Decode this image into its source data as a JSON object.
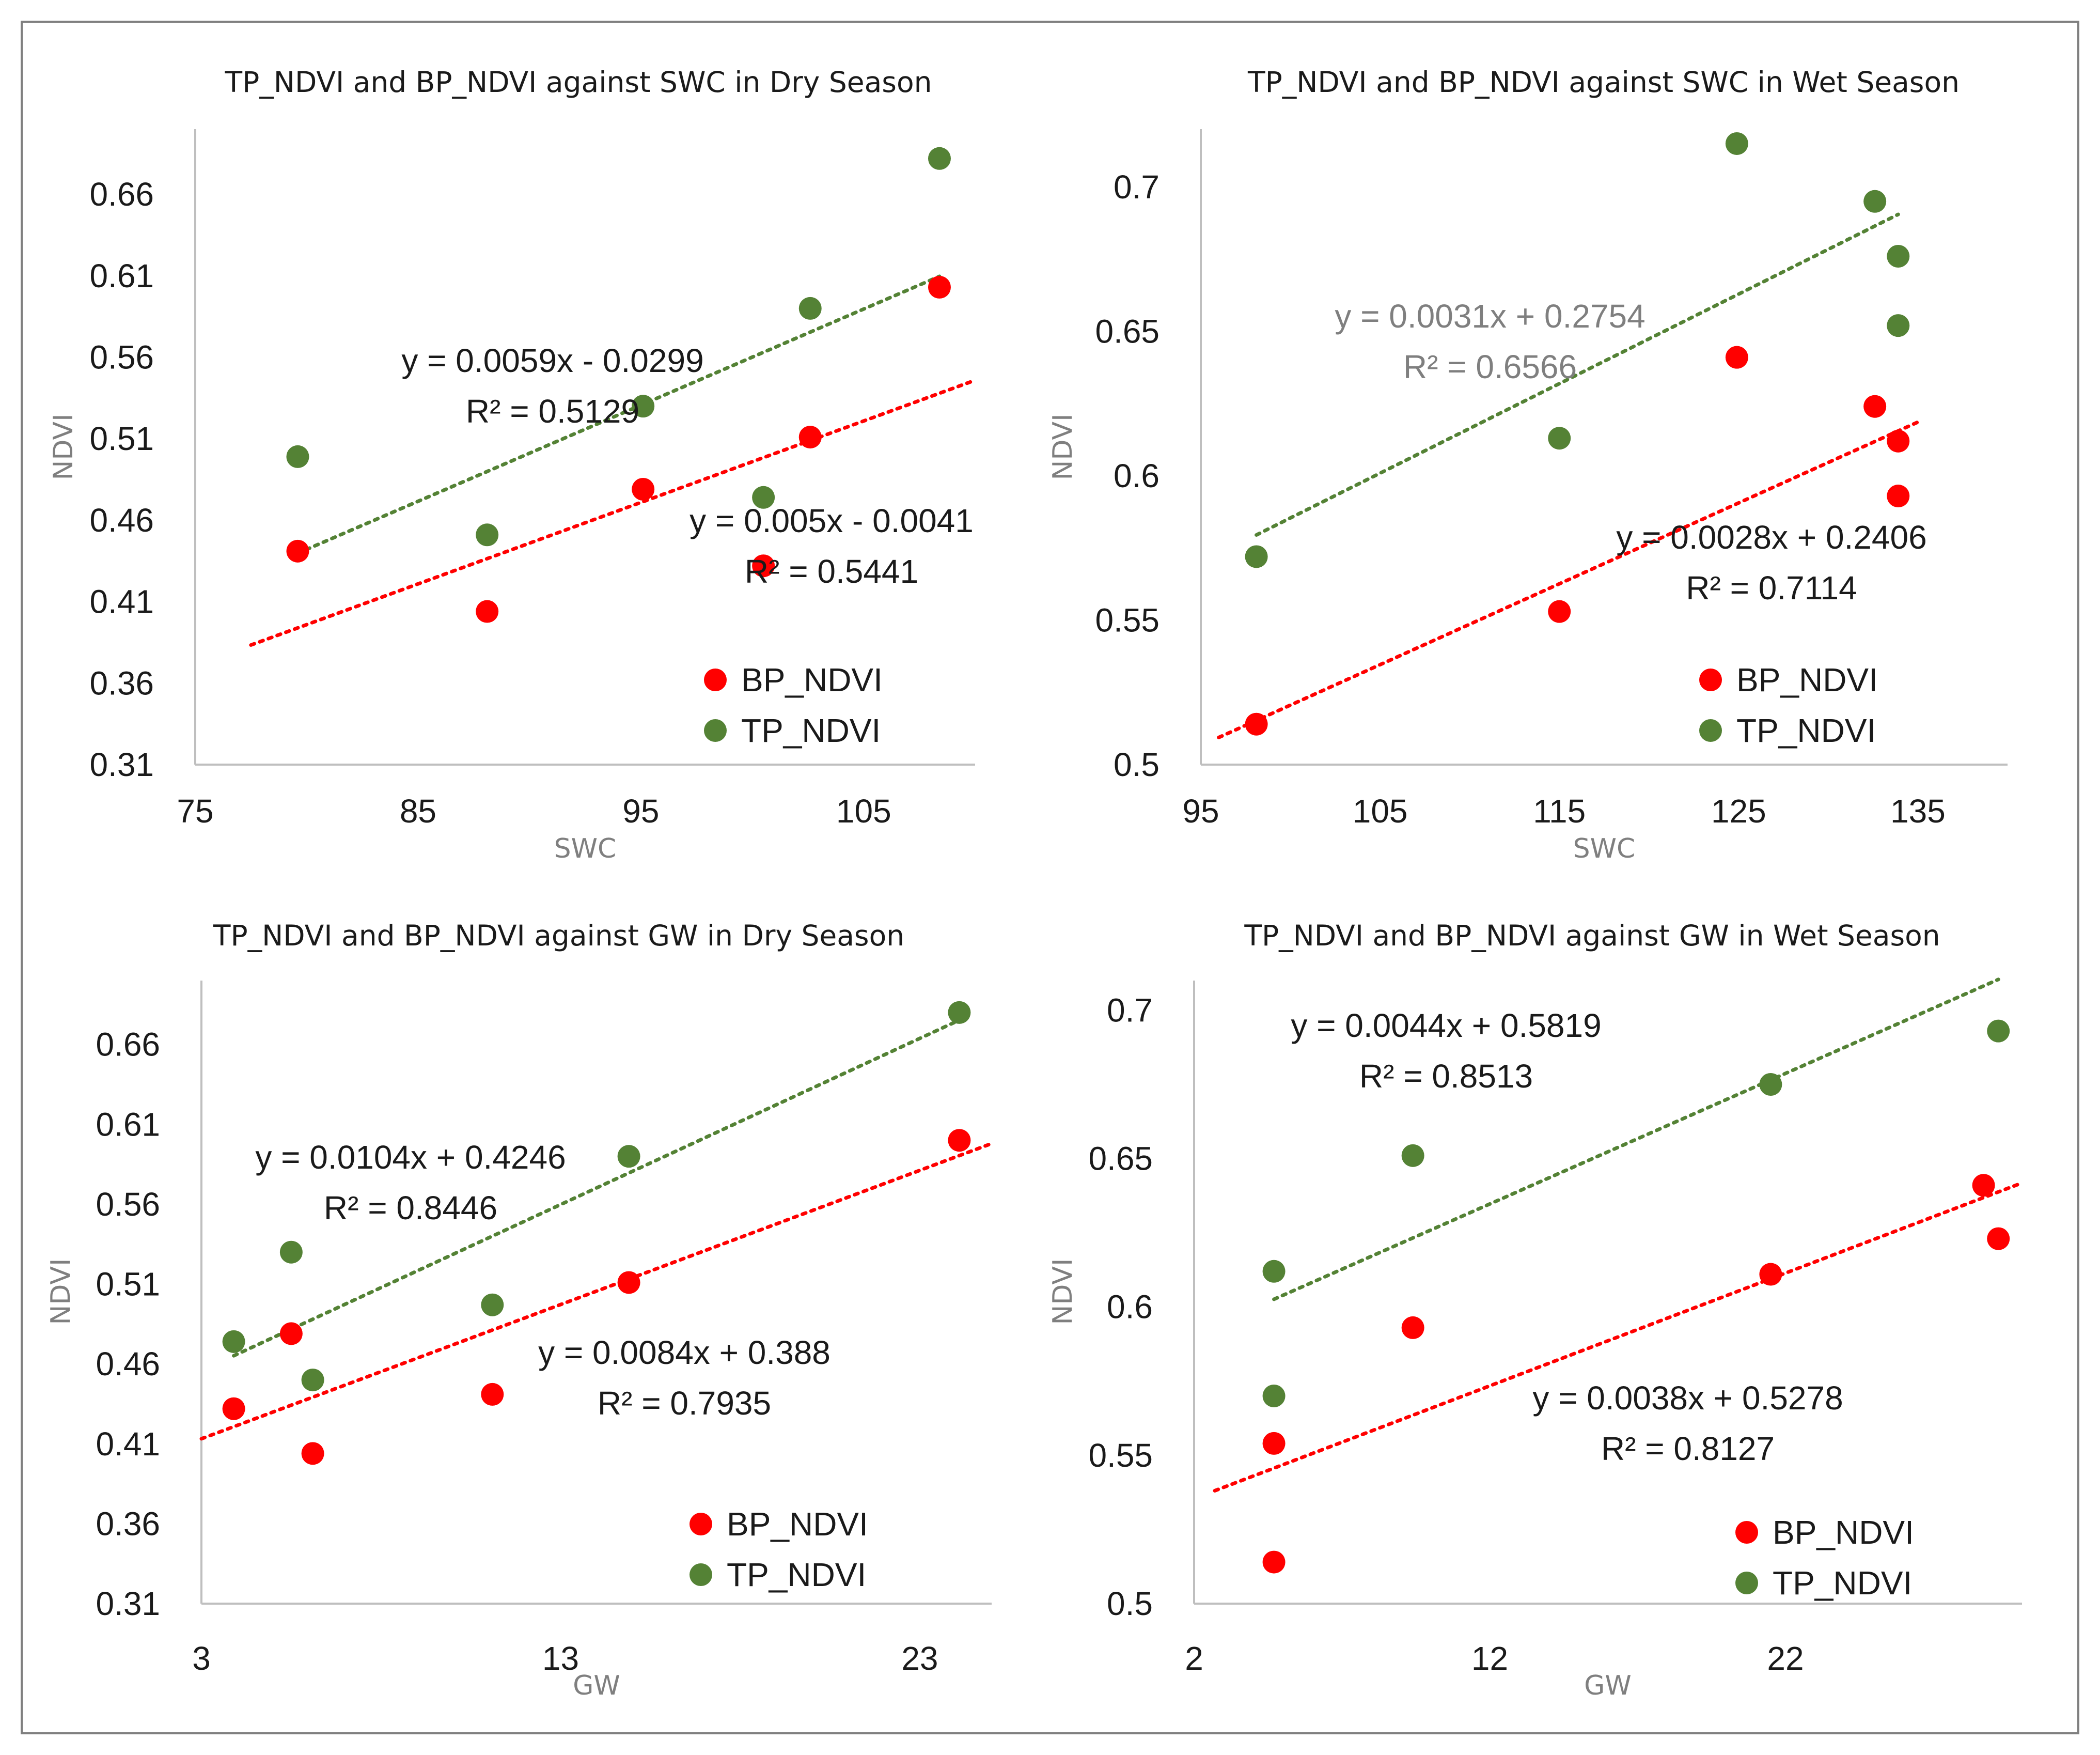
{
  "colors": {
    "bp": "#ff0000",
    "tp": "#548235",
    "axis": "#bfbfbf",
    "frame": "#7f7f7f",
    "gray_text": "#7f7f7f"
  },
  "chart_data": [
    {
      "type": "scatter",
      "title": "TP_NDVI and BP_NDVI against SWC in Dry Season",
      "xlabel": "SWC",
      "ylabel": "NDVI",
      "xlim": [
        75,
        110
      ],
      "ylim": [
        0.31,
        0.7
      ],
      "xticks": [
        "75",
        "85",
        "95",
        "105"
      ],
      "yticks": [
        "0.31",
        "0.36",
        "0.41",
        "0.46",
        "0.51",
        "0.56",
        "0.61",
        "0.66"
      ],
      "grid": false,
      "legend_position": "bottom-right",
      "series": [
        {
          "name": "BP_NDVI",
          "color": "#ff0000",
          "x": [
            79.6,
            88.1,
            95.1,
            100.5,
            102.6,
            108.4
          ],
          "y": [
            0.441,
            0.404,
            0.479,
            0.432,
            0.511,
            0.603
          ],
          "trendline": {
            "x_range": [
              77.5,
              110.0
            ],
            "equation": "y = 0.005x - 0.0041",
            "r2": "R² = 0.5441"
          }
        },
        {
          "name": "TP_NDVI",
          "color": "#548235",
          "x": [
            79.6,
            88.1,
            95.1,
            100.5,
            102.6,
            108.4
          ],
          "y": [
            0.499,
            0.451,
            0.53,
            0.474,
            0.59,
            0.682
          ],
          "trendline": {
            "x_range": [
              79.6,
              108.4
            ],
            "equation": "y = 0.0059x - 0.0299",
            "r2": "R² = 0.5129"
          }
        }
      ]
    },
    {
      "type": "scatter",
      "title": "TP_NDVI and BP_NDVI against SWC in Wet Season",
      "xlabel": "SWC",
      "ylabel": "NDVI",
      "xlim": [
        95,
        140
      ],
      "ylim": [
        0.5,
        0.72
      ],
      "xticks": [
        "95",
        "105",
        "115",
        "125",
        "135"
      ],
      "yticks": [
        "0.5",
        "0.55",
        "0.6",
        "0.65",
        "0.7"
      ],
      "grid": false,
      "legend_position": "bottom-right",
      "series": [
        {
          "name": "BP_NDVI",
          "color": "#ff0000",
          "x": [
            98.1,
            115.0,
            124.9,
            132.6,
            133.9,
            133.9
          ],
          "y": [
            0.514,
            0.553,
            0.641,
            0.624,
            0.612,
            0.593
          ],
          "trendline": {
            "x_range": [
              96.0,
              135.0
            ],
            "equation": "y = 0.0028x + 0.2406",
            "r2": "R² = 0.7114"
          }
        },
        {
          "name": "TP_NDVI",
          "color": "#548235",
          "x": [
            98.1,
            115.0,
            124.9,
            132.6,
            133.9,
            133.9
          ],
          "y": [
            0.572,
            0.613,
            0.715,
            0.695,
            0.676,
            0.652
          ],
          "trendline": {
            "x_range": [
              98.1,
              133.9
            ],
            "equation": "y = 0.0031x + 0.2754",
            "r2": "R² = 0.6566"
          }
        }
      ]
    },
    {
      "type": "scatter",
      "title": "TP_NDVI and BP_NDVI against GW in Dry Season",
      "xlabel": "GW",
      "ylabel": "NDVI",
      "xlim": [
        3,
        25
      ],
      "ylim": [
        0.31,
        0.7
      ],
      "xticks": [
        "3",
        "13",
        "23"
      ],
      "yticks": [
        "0.31",
        "0.36",
        "0.41",
        "0.46",
        "0.51",
        "0.56",
        "0.61",
        "0.66"
      ],
      "grid": false,
      "legend_position": "bottom-right",
      "series": [
        {
          "name": "BP_NDVI",
          "color": "#ff0000",
          "x": [
            3.9,
            5.5,
            6.1,
            11.1,
            14.9,
            24.1
          ],
          "y": [
            0.432,
            0.479,
            0.404,
            0.441,
            0.511,
            0.6
          ],
          "trendline": {
            "x_range": [
              3.0,
              25.0
            ],
            "equation": "y = 0.0084x + 0.388",
            "r2": "R² = 0.7935"
          }
        },
        {
          "name": "TP_NDVI",
          "color": "#548235",
          "x": [
            3.9,
            5.5,
            6.1,
            11.1,
            14.9,
            24.1
          ],
          "y": [
            0.474,
            0.53,
            0.45,
            0.497,
            0.59,
            0.68
          ],
          "trendline": {
            "x_range": [
              3.9,
              24.1
            ],
            "equation": "y = 0.0104x + 0.4246",
            "r2": "R² = 0.8446"
          }
        }
      ]
    },
    {
      "type": "scatter",
      "title": "TP_NDVI and BP_NDVI against GW in Wet Season",
      "xlabel": "GW",
      "ylabel": "NDVI",
      "xlim": [
        2,
        30
      ],
      "ylim": [
        0.5,
        0.71
      ],
      "xticks": [
        "2",
        "12",
        "22"
      ],
      "yticks": [
        "0.5",
        "0.55",
        "0.6",
        "0.65",
        "0.7"
      ],
      "grid": false,
      "legend_position": "bottom-right",
      "series": [
        {
          "name": "BP_NDVI",
          "color": "#ff0000",
          "x": [
            4.7,
            4.7,
            9.4,
            21.5,
            28.7,
            29.2
          ],
          "y": [
            0.514,
            0.554,
            0.593,
            0.611,
            0.641,
            0.623
          ],
          "trendline": {
            "x_range": [
              2.7,
              30.0
            ],
            "equation": "y = 0.0038x + 0.5278",
            "r2": "R² = 0.8127"
          }
        },
        {
          "name": "TP_NDVI",
          "color": "#548235",
          "x": [
            4.7,
            4.7,
            9.4,
            21.5,
            29.2
          ],
          "y": [
            0.57,
            0.612,
            0.651,
            0.675,
            0.693
          ],
          "trendline": {
            "x_range": [
              4.7,
              29.2
            ],
            "equation": "y = 0.0044x + 0.5819",
            "r2": "R² = 0.8513"
          }
        }
      ]
    }
  ]
}
